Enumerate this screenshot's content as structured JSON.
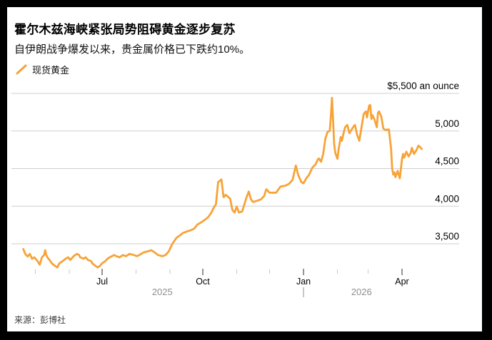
{
  "header": {
    "title": "霍尔木兹海峡紧张局势阻碍黄金逐步复苏",
    "subtitle": "自伊朗战争爆发以来，贵金属价格已下跌约10%。"
  },
  "legend": {
    "label": "现货黄金",
    "marker_color": "#F7A338"
  },
  "footer": {
    "source": "来源：彭博社"
  },
  "colors": {
    "line": "#F7A338",
    "gridline": "#CFCFCF",
    "minor_tick": "#C6C6C6",
    "major_tick": "#2A2A2A",
    "month_label": "#000000",
    "year_label": "#8F8F8F",
    "y_label": "#000000"
  },
  "chart_data": {
    "type": "line",
    "title": "霍尔木兹海峡紧张局势阻碍黄金逐步复苏",
    "series_name": "现货黄金",
    "unit": "$ an ounce",
    "legend_position": "top-left",
    "grid": "horizontal",
    "ylim": [
      3170,
      5500
    ],
    "y_ticks": [
      {
        "value": 5500,
        "label": "$5,500 an ounce"
      },
      {
        "value": 5000,
        "label": "5,000"
      },
      {
        "value": 4500,
        "label": "4,500"
      },
      {
        "value": 4000,
        "label": "4,000"
      },
      {
        "value": 3500,
        "label": "3,500"
      }
    ],
    "x_ticks": [
      {
        "date": "2025-05-01",
        "label": ""
      },
      {
        "date": "2025-06-01",
        "label": ""
      },
      {
        "date": "2025-07-01",
        "label": "Jul"
      },
      {
        "date": "2025-08-01",
        "label": ""
      },
      {
        "date": "2025-09-01",
        "label": ""
      },
      {
        "date": "2025-10-01",
        "label": "Oct"
      },
      {
        "date": "2025-11-01",
        "label": ""
      },
      {
        "date": "2025-12-01",
        "label": ""
      },
      {
        "date": "2026-01-01",
        "label": "Jan"
      },
      {
        "date": "2026-02-01",
        "label": ""
      },
      {
        "date": "2026-03-01",
        "label": ""
      },
      {
        "date": "2026-04-01",
        "label": "Apr"
      }
    ],
    "year_labels": [
      {
        "label": "2025",
        "date": "2025-08-25"
      },
      {
        "label": "2026",
        "date": "2026-02-23"
      }
    ],
    "year_separator": "2026-01-01",
    "points": [
      [
        "2025-04-20",
        3430
      ],
      [
        "2025-04-22",
        3360
      ],
      [
        "2025-04-24",
        3330
      ],
      [
        "2025-04-26",
        3365
      ],
      [
        "2025-04-28",
        3300
      ],
      [
        "2025-04-30",
        3320
      ],
      [
        "2025-05-03",
        3270
      ],
      [
        "2025-05-05",
        3222
      ],
      [
        "2025-05-07",
        3320
      ],
      [
        "2025-05-09",
        3350
      ],
      [
        "2025-05-10",
        3415
      ],
      [
        "2025-05-11",
        3350
      ],
      [
        "2025-05-12",
        3320
      ],
      [
        "2025-05-14",
        3285
      ],
      [
        "2025-05-16",
        3240
      ],
      [
        "2025-05-19",
        3205
      ],
      [
        "2025-05-21",
        3185
      ],
      [
        "2025-05-23",
        3240
      ],
      [
        "2025-05-26",
        3270
      ],
      [
        "2025-05-29",
        3305
      ],
      [
        "2025-05-31",
        3320
      ],
      [
        "2025-06-02",
        3285
      ],
      [
        "2025-06-05",
        3335
      ],
      [
        "2025-06-08",
        3365
      ],
      [
        "2025-06-10",
        3350
      ],
      [
        "2025-06-11",
        3320
      ],
      [
        "2025-06-14",
        3303
      ],
      [
        "2025-06-16",
        3320
      ],
      [
        "2025-06-18",
        3285
      ],
      [
        "2025-06-21",
        3270
      ],
      [
        "2025-06-22",
        3240
      ],
      [
        "2025-06-25",
        3205
      ],
      [
        "2025-06-27",
        3185
      ],
      [
        "2025-06-29",
        3205
      ],
      [
        "2025-07-01",
        3240
      ],
      [
        "2025-07-04",
        3270
      ],
      [
        "2025-07-06",
        3303
      ],
      [
        "2025-07-08",
        3320
      ],
      [
        "2025-07-10",
        3335
      ],
      [
        "2025-07-12",
        3350
      ],
      [
        "2025-07-14",
        3335
      ],
      [
        "2025-07-17",
        3320
      ],
      [
        "2025-07-20",
        3350
      ],
      [
        "2025-07-23",
        3335
      ],
      [
        "2025-07-26",
        3365
      ],
      [
        "2025-07-30",
        3350
      ],
      [
        "2025-08-02",
        3335
      ],
      [
        "2025-08-04",
        3350
      ],
      [
        "2025-08-08",
        3385
      ],
      [
        "2025-08-12",
        3400
      ],
      [
        "2025-08-15",
        3415
      ],
      [
        "2025-08-18",
        3385
      ],
      [
        "2025-08-21",
        3350
      ],
      [
        "2025-08-25",
        3335
      ],
      [
        "2025-08-28",
        3350
      ],
      [
        "2025-08-31",
        3400
      ],
      [
        "2025-09-03",
        3495
      ],
      [
        "2025-09-07",
        3580
      ],
      [
        "2025-09-10",
        3610
      ],
      [
        "2025-09-13",
        3645
      ],
      [
        "2025-09-16",
        3660
      ],
      [
        "2025-09-20",
        3680
      ],
      [
        "2025-09-23",
        3700
      ],
      [
        "2025-09-26",
        3755
      ],
      [
        "2025-09-30",
        3790
      ],
      [
        "2025-10-03",
        3820
      ],
      [
        "2025-10-06",
        3855
      ],
      [
        "2025-10-09",
        3920
      ],
      [
        "2025-10-11",
        3980
      ],
      [
        "2025-10-13",
        4025
      ],
      [
        "2025-10-15",
        4320
      ],
      [
        "2025-10-18",
        4355
      ],
      [
        "2025-10-20",
        4120
      ],
      [
        "2025-10-22",
        4150
      ],
      [
        "2025-10-26",
        4100
      ],
      [
        "2025-10-28",
        3950
      ],
      [
        "2025-10-30",
        3915
      ],
      [
        "2025-11-01",
        3995
      ],
      [
        "2025-11-03",
        3915
      ],
      [
        "2025-11-06",
        3930
      ],
      [
        "2025-11-10",
        4120
      ],
      [
        "2025-11-12",
        4195
      ],
      [
        "2025-11-14",
        4090
      ],
      [
        "2025-11-16",
        4055
      ],
      [
        "2025-11-19",
        4070
      ],
      [
        "2025-11-23",
        4090
      ],
      [
        "2025-11-26",
        4135
      ],
      [
        "2025-11-28",
        4225
      ],
      [
        "2025-12-01",
        4180
      ],
      [
        "2025-12-05",
        4180
      ],
      [
        "2025-12-07",
        4180
      ],
      [
        "2025-12-11",
        4260
      ],
      [
        "2025-12-16",
        4275
      ],
      [
        "2025-12-19",
        4300
      ],
      [
        "2025-12-22",
        4350
      ],
      [
        "2025-12-25",
        4540
      ],
      [
        "2025-12-27",
        4420
      ],
      [
        "2025-12-30",
        4320
      ],
      [
        "2026-01-01",
        4305
      ],
      [
        "2026-01-04",
        4380
      ],
      [
        "2026-01-06",
        4415
      ],
      [
        "2026-01-09",
        4510
      ],
      [
        "2026-01-12",
        4555
      ],
      [
        "2026-01-14",
        4620
      ],
      [
        "2026-01-15",
        4635
      ],
      [
        "2026-01-17",
        4590
      ],
      [
        "2026-01-19",
        4695
      ],
      [
        "2026-01-21",
        4900
      ],
      [
        "2026-01-23",
        4990
      ],
      [
        "2026-01-25",
        5000
      ],
      [
        "2026-01-26",
        5200
      ],
      [
        "2026-01-27",
        5440
      ],
      [
        "2026-01-28",
        5150
      ],
      [
        "2026-01-29",
        4820
      ],
      [
        "2026-01-30",
        4710
      ],
      [
        "2026-02-01",
        4630
      ],
      [
        "2026-02-02",
        4750
      ],
      [
        "2026-02-04",
        4920
      ],
      [
        "2026-02-05",
        4870
      ],
      [
        "2026-02-07",
        4990
      ],
      [
        "2026-02-08",
        5050
      ],
      [
        "2026-02-10",
        5080
      ],
      [
        "2026-02-12",
        4970
      ],
      [
        "2026-02-14",
        5020
      ],
      [
        "2026-02-16",
        5065
      ],
      [
        "2026-02-17",
        5080
      ],
      [
        "2026-02-19",
        4950
      ],
      [
        "2026-02-21",
        4870
      ],
      [
        "2026-02-23",
        5050
      ],
      [
        "2026-02-25",
        5225
      ],
      [
        "2026-02-27",
        5260
      ],
      [
        "2026-02-28",
        5180
      ],
      [
        "2026-03-02",
        5340
      ],
      [
        "2026-03-03",
        5345
      ],
      [
        "2026-03-04",
        5160
      ],
      [
        "2026-03-05",
        5210
      ],
      [
        "2026-03-07",
        5145
      ],
      [
        "2026-03-09",
        5050
      ],
      [
        "2026-03-10",
        5240
      ],
      [
        "2026-03-11",
        5260
      ],
      [
        "2026-03-13",
        5195
      ],
      [
        "2026-03-15",
        5030
      ],
      [
        "2026-03-17",
        5015
      ],
      [
        "2026-03-20",
        5020
      ],
      [
        "2026-03-22",
        4760
      ],
      [
        "2026-03-23",
        4500
      ],
      [
        "2026-03-24",
        4420
      ],
      [
        "2026-03-25",
        4450
      ],
      [
        "2026-03-26",
        4385
      ],
      [
        "2026-03-28",
        4470
      ],
      [
        "2026-03-30",
        4370
      ],
      [
        "2026-04-01",
        4630
      ],
      [
        "2026-04-02",
        4695
      ],
      [
        "2026-04-03",
        4645
      ],
      [
        "2026-04-05",
        4725
      ],
      [
        "2026-04-07",
        4660
      ],
      [
        "2026-04-09",
        4710
      ],
      [
        "2026-04-10",
        4775
      ],
      [
        "2026-04-12",
        4695
      ],
      [
        "2026-04-14",
        4740
      ],
      [
        "2026-04-16",
        4805
      ],
      [
        "2026-04-18",
        4780
      ],
      [
        "2026-04-19",
        4760
      ]
    ]
  }
}
